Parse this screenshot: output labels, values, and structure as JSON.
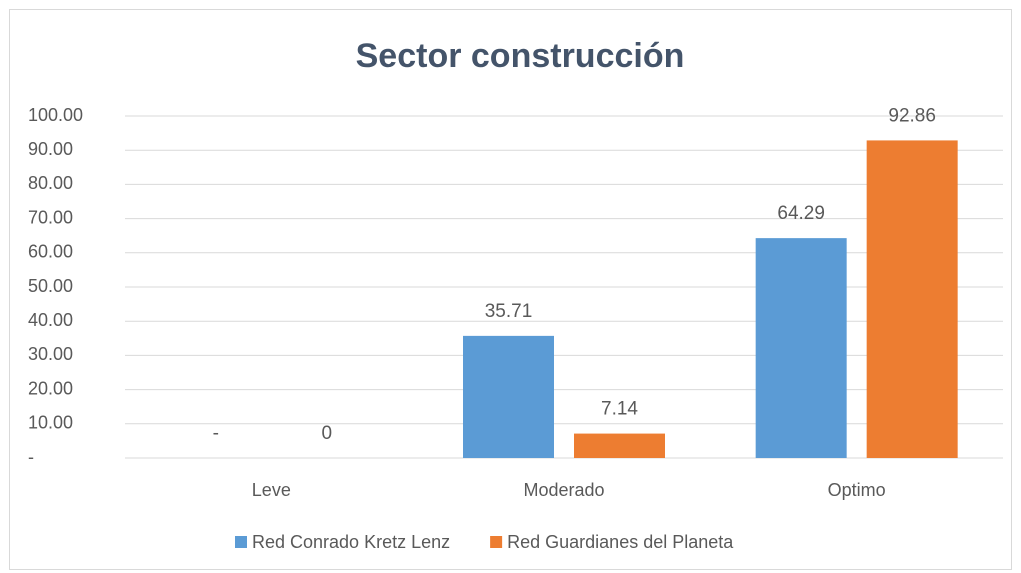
{
  "chart_data": {
    "type": "bar",
    "title": "Sector construcción",
    "categories": [
      "Leve",
      "Moderado",
      "Optimo"
    ],
    "series": [
      {
        "name": "Red Conrado Kretz Lenz",
        "color": "#5b9bd5",
        "values": [
          0,
          35.71,
          64.29
        ],
        "value_labels": [
          "-",
          "35.71",
          "64.29"
        ]
      },
      {
        "name": "Red Guardianes del Planeta",
        "color": "#ed7d31",
        "values": [
          0,
          7.14,
          92.86
        ]
      }
    ],
    "ylim": [
      0,
      100
    ],
    "yticks": [
      {
        "value": 0,
        "label": "-"
      },
      {
        "value": 10,
        "label": "10.00"
      },
      {
        "value": 20,
        "label": "20.00"
      },
      {
        "value": 30,
        "label": "30.00"
      },
      {
        "value": 40,
        "label": "40.00"
      },
      {
        "value": 50,
        "label": "50.00"
      },
      {
        "value": 60,
        "label": "60.00"
      },
      {
        "value": 70,
        "label": "70.00"
      },
      {
        "value": 80,
        "label": "80.00"
      },
      {
        "value": 90,
        "label": "90.00"
      },
      {
        "value": 100,
        "label": "100.00"
      }
    ],
    "grid": true,
    "legend": "bottom"
  }
}
